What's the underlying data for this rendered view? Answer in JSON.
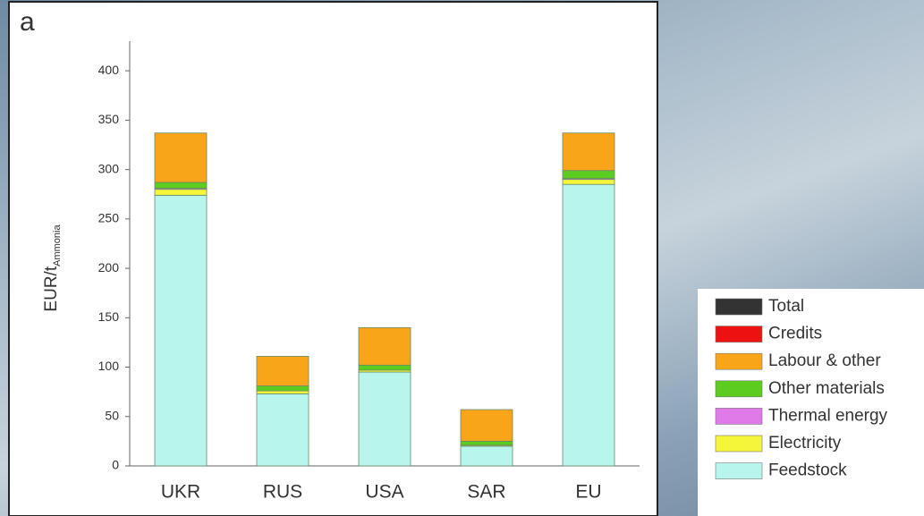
{
  "chart_data": {
    "type": "stacked-bar",
    "panel_label": "a",
    "ylabel": "EUR/t",
    "ylabel_sub": "Ammonia",
    "categories": [
      "UKR",
      "RUS",
      "USA",
      "SAR",
      "EU"
    ],
    "series": [
      {
        "name": "Feedstock",
        "color": "#b8f5ec",
        "values": [
          274,
          73,
          95,
          20,
          285
        ]
      },
      {
        "name": "Electricity",
        "color": "#f5f53a",
        "values": [
          6,
          3,
          2,
          1,
          5
        ]
      },
      {
        "name": "Thermal energy",
        "color": "#e07ae8",
        "values": [
          1,
          0,
          0,
          0,
          1
        ]
      },
      {
        "name": "Other materials",
        "color": "#5ccc1f",
        "values": [
          6,
          5,
          5,
          4,
          8
        ]
      },
      {
        "name": "Labour & other",
        "color": "#f9a51a",
        "values": [
          50,
          30,
          38,
          32,
          38
        ]
      },
      {
        "name": "Credits",
        "color": "#ee1111",
        "values": [
          null,
          null,
          null,
          null,
          null
        ]
      },
      {
        "name": "Total",
        "color": "#333333",
        "values": [
          null,
          null,
          null,
          null,
          null
        ]
      }
    ],
    "ylim": [
      0,
      430
    ],
    "yticks": [
      0,
      50,
      100,
      150,
      200,
      250,
      300,
      350,
      400
    ]
  }
}
